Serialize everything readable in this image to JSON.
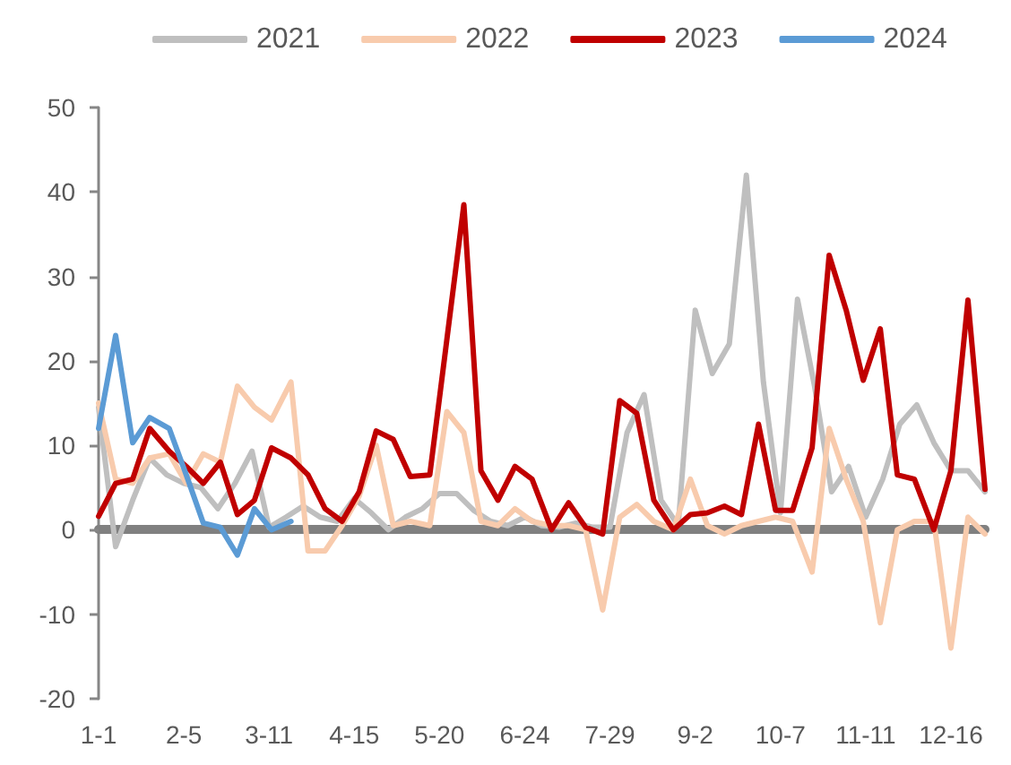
{
  "chart_data": {
    "type": "line",
    "x": [
      "--01-01",
      "--01-08",
      "--01-15",
      "--01-22",
      "--01-29",
      "--02-05",
      "--02-12",
      "--02-19",
      "--02-26",
      "--03-04",
      "--03-11",
      "--03-18",
      "--03-25",
      "--04-01",
      "--04-08",
      "--04-15",
      "--04-22",
      "--04-29",
      "--05-06",
      "--05-13",
      "--05-20",
      "--05-27",
      "--06-03",
      "--06-10",
      "--06-17",
      "--06-24",
      "--07-01",
      "--07-08",
      "--07-15",
      "--07-22",
      "--07-29",
      "--08-05",
      "--08-12",
      "--08-19",
      "--08-26",
      "--09-02",
      "--09-09",
      "--09-16",
      "--09-23",
      "--09-30",
      "--10-07",
      "--10-14",
      "--10-21",
      "--10-28",
      "--11-04",
      "--11-11",
      "--11-18",
      "--11-25",
      "--12-02",
      "--12-09",
      "--12-16",
      "--12-23",
      "--12-30"
    ],
    "xlim": [
      "--01-01",
      "--12-30"
    ],
    "xticks": [
      {
        "value": "--01-01",
        "label": "1-1"
      },
      {
        "value": "--02-05",
        "label": "2-5"
      },
      {
        "value": "--03-11",
        "label": "3-11"
      },
      {
        "value": "--04-15",
        "label": "4-15"
      },
      {
        "value": "--05-20",
        "label": "5-20"
      },
      {
        "value": "--06-24",
        "label": "6-24"
      },
      {
        "value": "--07-29",
        "label": "7-29"
      },
      {
        "value": "--09-02",
        "label": "9-2"
      },
      {
        "value": "--10-07",
        "label": "10-7"
      },
      {
        "value": "--11-11",
        "label": "11-11"
      },
      {
        "value": "--12-16",
        "label": "12-16"
      }
    ],
    "ylim": [
      -20,
      50
    ],
    "yticks": [
      -20,
      -10,
      0,
      10,
      20,
      30,
      40,
      50
    ],
    "legend": "top",
    "series": [
      {
        "name": "2021",
        "color": "#bfbfbf",
        "values": [
          14.5,
          -2,
          3.5,
          8.5,
          6.5,
          5.5,
          5,
          2.5,
          5.5,
          9.3,
          0.3,
          1.5,
          2.8,
          1.5,
          1,
          3.7,
          2,
          0,
          1.5,
          2.5,
          4.3,
          4.3,
          2.3,
          1,
          0.5,
          1.5,
          0.5,
          0.3,
          0.8,
          0.3,
          0.3,
          11.5,
          16,
          3.5,
          0.5,
          26,
          18.5,
          22,
          42,
          17.5,
          2,
          27.3,
          17,
          4.5,
          7.5,
          1.5,
          6,
          12.5,
          14.8,
          10.3,
          7,
          7,
          4.5
        ]
      },
      {
        "name": "2022",
        "color": "#f8cbad",
        "x": [
          "--01-01",
          "--01-08",
          "--01-15",
          "--01-22",
          "--01-30",
          "--02-06",
          "--02-13",
          "--02-20",
          "--02-27",
          "--03-05",
          "--03-12",
          "--03-20",
          "--03-27",
          "--04-03",
          "--04-10",
          "--04-17",
          "--04-24",
          "--05-01",
          "--05-08",
          "--05-16",
          "--05-23",
          "--05-30",
          "--06-06",
          "--06-13",
          "--06-20",
          "--06-27",
          "--07-05",
          "--07-12",
          "--07-19",
          "--07-26",
          "--08-02",
          "--08-09",
          "--08-16",
          "--08-24",
          "--08-31",
          "--09-07",
          "--09-14",
          "--09-21",
          "--09-28",
          "--10-05",
          "--10-12",
          "--10-20",
          "--10-27",
          "--11-03",
          "--11-10",
          "--11-17",
          "--11-24",
          "--12-01",
          "--12-09",
          "--12-16",
          "--12-23",
          "--12-30"
        ],
        "values": [
          15,
          6,
          5.5,
          8.5,
          9,
          5.5,
          9,
          8,
          17,
          14.5,
          13,
          17.5,
          -2.5,
          -2.5,
          0.5,
          4,
          10,
          0.5,
          1,
          0.5,
          14,
          11.5,
          1,
          0.5,
          2.5,
          1,
          0.5,
          0.5,
          0,
          -9.5,
          1.5,
          3,
          1,
          0,
          6,
          0.5,
          -0.5,
          0.5,
          1,
          1.5,
          1,
          -5,
          12,
          6,
          1,
          -11,
          0,
          1,
          1,
          -14,
          1.5,
          -0.5
        ]
      },
      {
        "name": "2023",
        "color": "#c00000",
        "x": [
          "--01-01",
          "--01-08",
          "--01-15",
          "--01-22",
          "--01-30",
          "--02-06",
          "--02-13",
          "--02-20",
          "--02-27",
          "--03-05",
          "--03-12",
          "--03-20",
          "--03-27",
          "--04-03",
          "--04-10",
          "--04-17",
          "--04-24",
          "--05-01",
          "--05-08",
          "--05-16",
          "--05-23",
          "--05-30",
          "--06-06",
          "--06-13",
          "--06-20",
          "--06-27",
          "--07-05",
          "--07-12",
          "--07-19",
          "--07-26",
          "--08-02",
          "--08-09",
          "--08-16",
          "--08-24",
          "--08-31",
          "--09-07",
          "--09-14",
          "--09-21",
          "--09-28",
          "--10-05",
          "--10-12",
          "--10-20",
          "--10-27",
          "--11-03",
          "--11-10",
          "--11-17",
          "--11-24",
          "--12-01",
          "--12-09",
          "--12-16",
          "--12-23",
          "--12-30"
        ],
        "values": [
          1.6,
          5.5,
          6,
          12,
          9.3,
          7.5,
          5.5,
          8,
          1.8,
          3.5,
          9.7,
          8.5,
          6.5,
          2.5,
          1,
          4.5,
          11.7,
          10.7,
          6.3,
          6.5,
          22.5,
          38.5,
          7,
          3.5,
          7.5,
          6,
          0,
          3.2,
          0.3,
          -0.5,
          15.3,
          13.8,
          3.5,
          0,
          1.8,
          2,
          2.8,
          1.8,
          12.5,
          2.3,
          2.3,
          9.7,
          32.5,
          26,
          17.7,
          23.8,
          6.5,
          6,
          0,
          7,
          27.2,
          4.8
        ]
      },
      {
        "name": "2024",
        "color": "#5b9bd5",
        "x": [
          "--01-01",
          "--01-08",
          "--01-15",
          "--01-22",
          "--01-30",
          "--02-06",
          "--02-13",
          "--02-20",
          "--02-27",
          "--03-05",
          "--03-12",
          "--03-20"
        ],
        "values": [
          12,
          23,
          10.3,
          13.3,
          12,
          6.5,
          0.8,
          0.3,
          -3,
          2.5,
          0,
          1
        ]
      }
    ]
  }
}
